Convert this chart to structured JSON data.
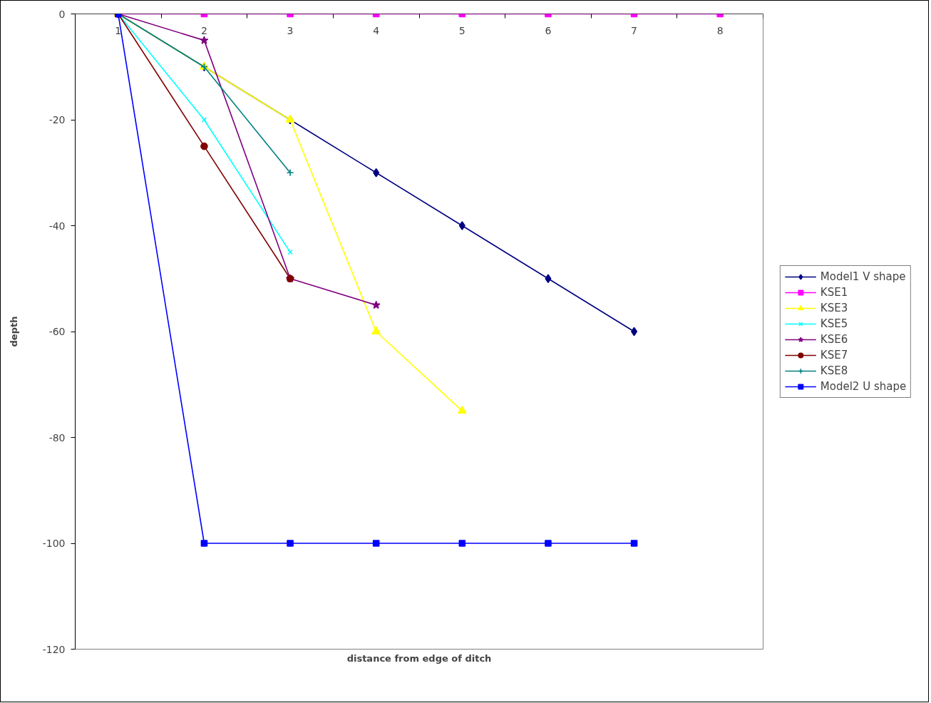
{
  "chart_data": {
    "type": "line",
    "xlabel": "distance from edge of ditch",
    "ylabel": "depth",
    "categories": [
      "1",
      "2",
      "3",
      "4",
      "5",
      "6",
      "7",
      "8"
    ],
    "ylim": [
      -120,
      0
    ],
    "yticks": [
      -120,
      -100,
      -80,
      -60,
      -40,
      -20,
      0
    ],
    "grid": false,
    "legend": "right",
    "line_style": "solid",
    "series": [
      {
        "name": "Model1 V shape",
        "color": "#000080",
        "marker": "diamond",
        "values": [
          0,
          -10,
          -20,
          -30,
          -40,
          -50,
          -60,
          null
        ]
      },
      {
        "name": "KSE1",
        "color": "#ff00ff",
        "marker": "square",
        "values": [
          0,
          0,
          0,
          0,
          0,
          0,
          0,
          0
        ]
      },
      {
        "name": "KSE3",
        "color": "#ffff00",
        "marker": "triangle",
        "values": [
          0,
          -10,
          -20,
          -60,
          -75,
          null,
          null,
          null
        ]
      },
      {
        "name": "KSE5",
        "color": "#00ffff",
        "marker": "x",
        "values": [
          0,
          -20,
          -45,
          null,
          null,
          null,
          null,
          null
        ]
      },
      {
        "name": "KSE6",
        "color": "#800080",
        "marker": "star",
        "values": [
          0,
          -5,
          -50,
          -55,
          null,
          null,
          null,
          null
        ]
      },
      {
        "name": "KSE7",
        "color": "#800000",
        "marker": "circle",
        "values": [
          0,
          -25,
          -50,
          null,
          null,
          null,
          null,
          null
        ]
      },
      {
        "name": "KSE8",
        "color": "#008080",
        "marker": "cross",
        "values": [
          0,
          -10,
          -30,
          null,
          null,
          null,
          null,
          null
        ]
      },
      {
        "name": "Model2 U shape",
        "color": "#0000ff",
        "marker": "square",
        "values": [
          0,
          -100,
          -100,
          -100,
          -100,
          -100,
          -100,
          null
        ]
      }
    ]
  }
}
